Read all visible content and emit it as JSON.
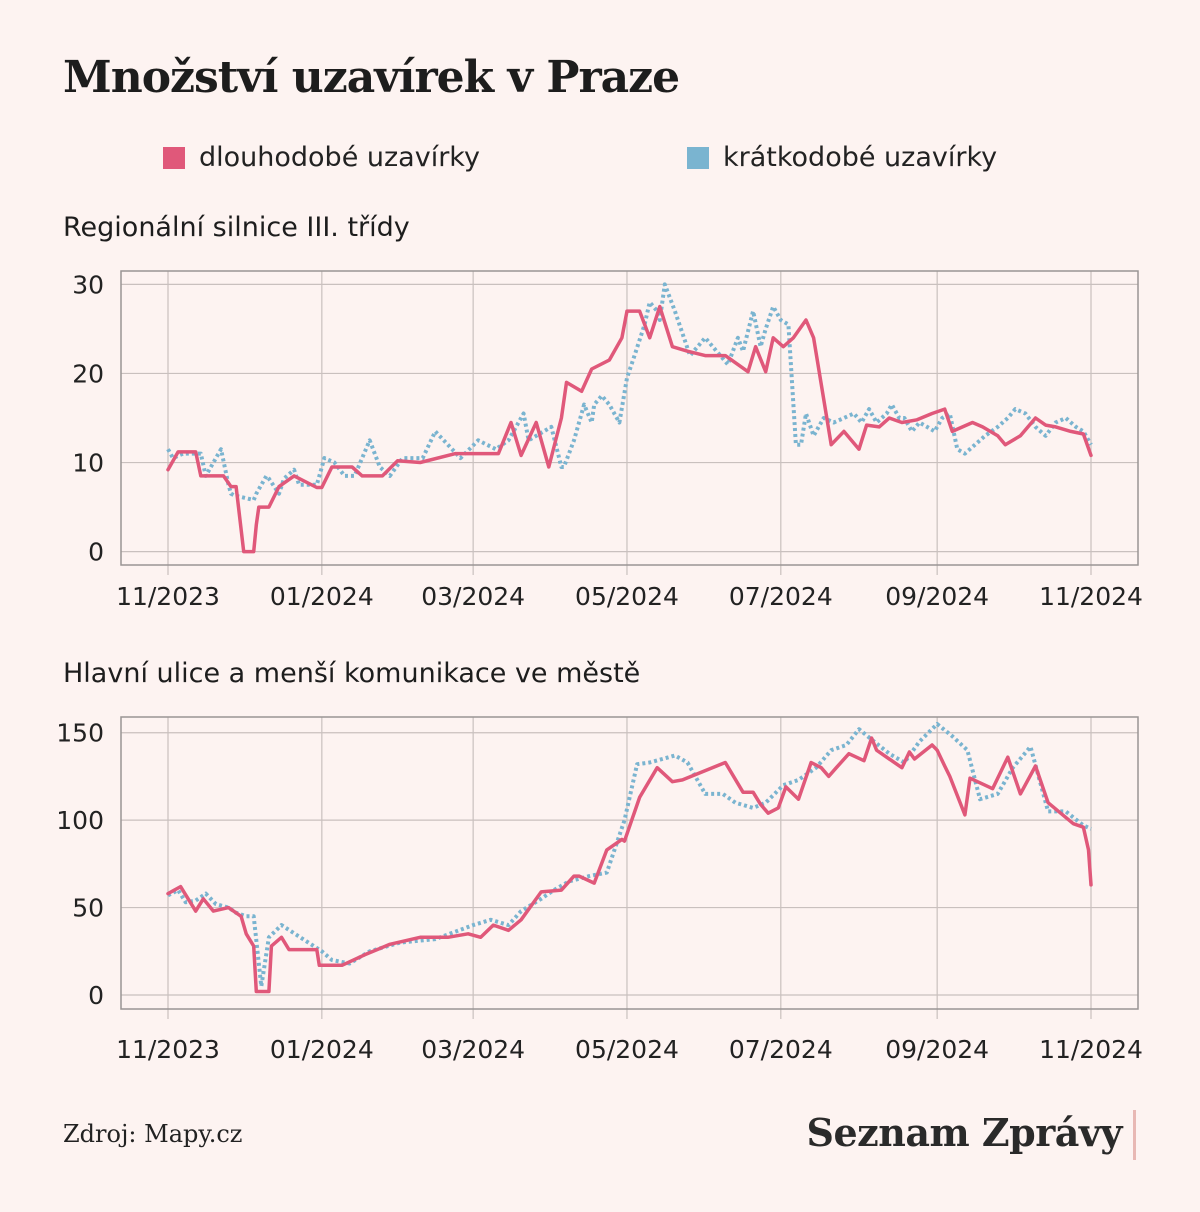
{
  "title": "Množství uzavírek v Praze",
  "legend": [
    {
      "label": "dlouhodobé uzavírky",
      "color": "#e0587a"
    },
    {
      "label": "krátkodobé uzavírky",
      "color": "#7ab4d0"
    }
  ],
  "source": "Zdroj: Mapy.cz",
  "logo": "Seznam Zprávy",
  "chart_data": [
    {
      "type": "line",
      "title": "Regionální silnice III. třídy",
      "x_axis": {
        "start": "2023-11-01",
        "end": "2024-11-01",
        "ticks": [
          "11/2023",
          "01/2024",
          "03/2024",
          "05/2024",
          "07/2024",
          "09/2024",
          "11/2024"
        ]
      },
      "y_axis": {
        "ticks": [
          0,
          10,
          20,
          30
        ],
        "ylim": [
          -1.5,
          31.5
        ]
      },
      "grid": true,
      "series": [
        {
          "name": "krátkodobé uzavírky",
          "style": "dotted",
          "x": [
            "2023-11-01",
            "2023-11-03",
            "2023-11-07",
            "2023-11-14",
            "2023-11-16",
            "2023-11-22",
            "2023-11-25",
            "2023-11-26",
            "2023-11-28",
            "2023-11-29",
            "2023-12-05",
            "2023-12-06",
            "2023-12-10",
            "2023-12-11",
            "2023-12-15",
            "2023-12-17",
            "2023-12-21",
            "2023-12-23",
            "2023-12-29",
            "2023-12-30",
            "2024-01-02",
            "2024-01-06",
            "2024-01-10",
            "2024-01-14",
            "2024-01-20",
            "2024-01-24",
            "2024-01-28",
            "2024-02-02",
            "2024-02-10",
            "2024-02-15",
            "2024-02-25",
            "2024-03-03",
            "2024-03-10",
            "2024-03-15",
            "2024-03-21",
            "2024-03-23",
            "2024-04-01",
            "2024-04-05",
            "2024-04-06",
            "2024-04-10",
            "2024-04-14",
            "2024-04-17",
            "2024-04-18",
            "2024-04-21",
            "2024-04-24",
            "2024-04-28",
            "2024-05-01",
            "2024-05-04",
            "2024-05-08",
            "2024-05-10",
            "2024-05-13",
            "2024-05-14",
            "2024-05-16",
            "2024-05-20",
            "2024-05-26",
            "2024-06-01",
            "2024-06-10",
            "2024-06-14",
            "2024-06-16",
            "2024-06-20",
            "2024-06-23",
            "2024-06-25",
            "2024-06-28",
            "2024-07-01",
            "2024-07-04",
            "2024-07-07",
            "2024-07-09",
            "2024-07-11",
            "2024-07-14",
            "2024-07-18",
            "2024-07-22",
            "2024-07-26",
            "2024-07-30",
            "2024-08-02",
            "2024-08-05",
            "2024-08-08",
            "2024-08-10",
            "2024-08-12",
            "2024-08-14",
            "2024-08-17",
            "2024-08-19",
            "2024-08-22",
            "2024-08-25",
            "2024-08-28",
            "2024-08-31",
            "2024-09-03",
            "2024-09-06",
            "2024-09-09",
            "2024-09-12",
            "2024-09-16",
            "2024-09-20",
            "2024-09-25",
            "2024-09-29",
            "2024-10-02",
            "2024-10-06",
            "2024-10-10",
            "2024-10-14",
            "2024-10-18",
            "2024-10-22",
            "2024-10-26",
            "2024-10-29",
            "2024-11-01"
          ],
          "y": [
            11.5,
            10.5,
            11,
            11,
            8.5,
            11.5,
            7.5,
            6.5,
            6.2,
            6.2,
            5.8,
            6.5,
            8.5,
            8.2,
            6.5,
            8.2,
            9.2,
            7.5,
            7.5,
            7.5,
            10.5,
            10,
            8.5,
            8.5,
            12.5,
            9.5,
            8.5,
            10.5,
            10.5,
            13.5,
            10.5,
            12.5,
            11.5,
            12.5,
            15.5,
            12.5,
            14,
            9.5,
            9.5,
            12.5,
            16.5,
            14.5,
            16.5,
            17.5,
            16.5,
            14.5,
            19.5,
            22,
            25.5,
            28,
            27,
            26,
            30,
            27,
            22,
            24,
            21,
            24,
            22.5,
            27,
            23,
            25,
            27.5,
            26,
            25.5,
            12,
            12,
            15.5,
            13,
            15,
            14.5,
            15,
            15.5,
            14.5,
            16,
            14.5,
            15,
            15.5,
            16.5,
            15,
            15,
            13.5,
            14.5,
            14,
            13.5,
            15,
            15.5,
            11.5,
            11,
            12,
            13,
            14,
            15,
            16,
            15.5,
            14,
            13,
            14.5,
            15,
            14,
            13.5,
            12
          ],
          "color": "#7ab4d0"
        },
        {
          "name": "dlouhodobé uzavírky",
          "style": "solid",
          "x": [
            "2023-11-01",
            "2023-11-05",
            "2023-11-12",
            "2023-11-14",
            "2023-11-21",
            "2023-11-23",
            "2023-11-26",
            "2023-11-28",
            "2023-12-01",
            "2023-12-05",
            "2023-12-06",
            "2023-12-07",
            "2023-12-11",
            "2023-12-15",
            "2023-12-21",
            "2023-12-30",
            "2024-01-01",
            "2024-01-05",
            "2024-01-13",
            "2024-01-17",
            "2024-01-25",
            "2024-01-31",
            "2024-02-09",
            "2024-02-23",
            "2024-03-05",
            "2024-03-11",
            "2024-03-16",
            "2024-03-20",
            "2024-03-26",
            "2024-03-31",
            "2024-04-05",
            "2024-04-07",
            "2024-04-13",
            "2024-04-17",
            "2024-04-24",
            "2024-04-29",
            "2024-05-01",
            "2024-05-06",
            "2024-05-10",
            "2024-05-14",
            "2024-05-19",
            "2024-05-25",
            "2024-06-01",
            "2024-06-09",
            "2024-06-18",
            "2024-06-21",
            "2024-06-25",
            "2024-06-28",
            "2024-07-02",
            "2024-07-06",
            "2024-07-11",
            "2024-07-14",
            "2024-07-21",
            "2024-07-26",
            "2024-08-01",
            "2024-08-04",
            "2024-08-09",
            "2024-08-13",
            "2024-08-18",
            "2024-08-24",
            "2024-08-30",
            "2024-09-04",
            "2024-09-07",
            "2024-09-15",
            "2024-09-19",
            "2024-09-25",
            "2024-09-28",
            "2024-10-04",
            "2024-10-10",
            "2024-10-14",
            "2024-10-18",
            "2024-10-24",
            "2024-10-29",
            "2024-11-01"
          ],
          "y": [
            9.2,
            11.2,
            11.2,
            8.5,
            8.5,
            8.5,
            7.3,
            7.3,
            0,
            0,
            3,
            5,
            5,
            7.3,
            8.5,
            7.2,
            7.2,
            9.5,
            9.5,
            8.5,
            8.5,
            10.2,
            10,
            11,
            11,
            11,
            14.5,
            10.8,
            14.5,
            9.5,
            15,
            19,
            18,
            20.5,
            21.5,
            24,
            27,
            27,
            24,
            27.5,
            23,
            22.5,
            22,
            22,
            20.2,
            23,
            20.2,
            24,
            23,
            24,
            26,
            24,
            12,
            13.5,
            11.5,
            14.2,
            14,
            15,
            14.5,
            14.8,
            15.5,
            16,
            13.5,
            14.5,
            14,
            13,
            12,
            13,
            15,
            14.2,
            14,
            13.5,
            13.2,
            10.8
          ],
          "color": "#e0587a"
        }
      ]
    },
    {
      "type": "line",
      "title": "Hlavní ulice a menší komunikace ve městě",
      "x_axis": {
        "start": "2023-11-01",
        "end": "2024-11-01",
        "ticks": [
          "11/2023",
          "01/2024",
          "03/2024",
          "05/2024",
          "07/2024",
          "09/2024",
          "11/2024"
        ]
      },
      "y_axis": {
        "ticks": [
          0,
          50,
          100,
          150
        ],
        "ylim": [
          -8,
          159
        ]
      },
      "grid": true,
      "series": [
        {
          "name": "krátkodobé uzavírky",
          "style": "dotted",
          "x": [
            "2023-11-01",
            "2023-11-05",
            "2023-11-08",
            "2023-11-12",
            "2023-11-16",
            "2023-11-20",
            "2023-11-25",
            "2023-11-28",
            "2023-12-02",
            "2023-12-05",
            "2023-12-08",
            "2023-12-11",
            "2023-12-16",
            "2024-01-01",
            "2024-01-05",
            "2024-01-12",
            "2024-01-20",
            "2024-02-01",
            "2024-02-15",
            "2024-03-01",
            "2024-03-08",
            "2024-03-15",
            "2024-03-20",
            "2024-03-28",
            "2024-04-02",
            "2024-04-08",
            "2024-04-16",
            "2024-04-23",
            "2024-04-30",
            "2024-05-05",
            "2024-05-10",
            "2024-05-15",
            "2024-05-20",
            "2024-05-25",
            "2024-06-01",
            "2024-06-08",
            "2024-06-13",
            "2024-06-20",
            "2024-06-25",
            "2024-07-02",
            "2024-07-08",
            "2024-07-15",
            "2024-07-21",
            "2024-07-27",
            "2024-08-01",
            "2024-08-07",
            "2024-08-13",
            "2024-08-19",
            "2024-08-25",
            "2024-09-01",
            "2024-09-07",
            "2024-09-13",
            "2024-09-18",
            "2024-09-25",
            "2024-10-01",
            "2024-10-08",
            "2024-10-15",
            "2024-10-22",
            "2024-10-29",
            "2024-11-01"
          ],
          "y": [
            57,
            60,
            53,
            54,
            58,
            52,
            50,
            47,
            45,
            45,
            5,
            33,
            40,
            25,
            20,
            18,
            25,
            30,
            32,
            40,
            43,
            40,
            48,
            55,
            60,
            65,
            68,
            70,
            100,
            132,
            133,
            135,
            137,
            133,
            115,
            115,
            110,
            107,
            110,
            120,
            123,
            130,
            140,
            143,
            152,
            145,
            138,
            133,
            145,
            155,
            148,
            140,
            112,
            115,
            130,
            142,
            105,
            105,
            97,
            95
          ],
          "color": "#7ab4d0"
        },
        {
          "name": "dlouhodobé uzavírky",
          "style": "solid",
          "x": [
            "2023-11-01",
            "2023-11-06",
            "2023-11-12",
            "2023-11-15",
            "2023-11-19",
            "2023-11-25",
            "2023-11-30",
            "2023-12-02",
            "2023-12-05",
            "2023-12-06",
            "2023-12-11",
            "2023-12-12",
            "2023-12-16",
            "2023-12-19",
            "2023-12-30",
            "2023-12-31",
            "2024-01-09",
            "2024-01-18",
            "2024-01-28",
            "2024-02-09",
            "2024-02-20",
            "2024-02-28",
            "2024-03-04",
            "2024-03-09",
            "2024-03-15",
            "2024-03-20",
            "2024-03-28",
            "2024-04-05",
            "2024-04-10",
            "2024-04-12",
            "2024-04-18",
            "2024-04-23",
            "2024-04-29",
            "2024-04-30",
            "2024-05-06",
            "2024-05-13",
            "2024-05-19",
            "2024-05-23",
            "2024-05-28",
            "2024-06-09",
            "2024-06-16",
            "2024-06-20",
            "2024-06-23",
            "2024-06-26",
            "2024-06-30",
            "2024-07-03",
            "2024-07-08",
            "2024-07-13",
            "2024-07-17",
            "2024-07-20",
            "2024-07-23",
            "2024-07-28",
            "2024-08-03",
            "2024-08-06",
            "2024-08-08",
            "2024-08-13",
            "2024-08-18",
            "2024-08-21",
            "2024-08-23",
            "2024-08-30",
            "2024-09-01",
            "2024-09-04",
            "2024-09-06",
            "2024-09-12",
            "2024-09-14",
            "2024-09-20",
            "2024-09-23",
            "2024-09-29",
            "2024-10-04",
            "2024-10-10",
            "2024-10-15",
            "2024-10-25",
            "2024-10-29",
            "2024-10-31",
            "2024-11-01"
          ],
          "y": [
            58,
            62,
            48,
            55,
            48,
            50,
            45,
            35,
            28,
            2,
            2,
            28,
            33,
            26,
            26,
            17,
            17,
            23,
            29,
            33,
            33,
            35,
            33,
            40,
            37,
            43,
            59,
            60,
            68,
            68,
            64,
            83,
            89,
            88,
            113,
            130,
            122,
            123,
            126,
            133,
            116,
            116,
            109,
            104,
            107,
            119,
            112,
            133,
            130,
            125,
            130,
            138,
            134,
            147,
            140,
            135,
            130,
            139,
            135,
            143,
            140,
            131,
            125,
            103,
            124,
            120,
            118,
            136,
            115,
            131,
            110,
            98,
            96,
            83,
            63
          ],
          "color": "#e0587a"
        }
      ]
    }
  ]
}
